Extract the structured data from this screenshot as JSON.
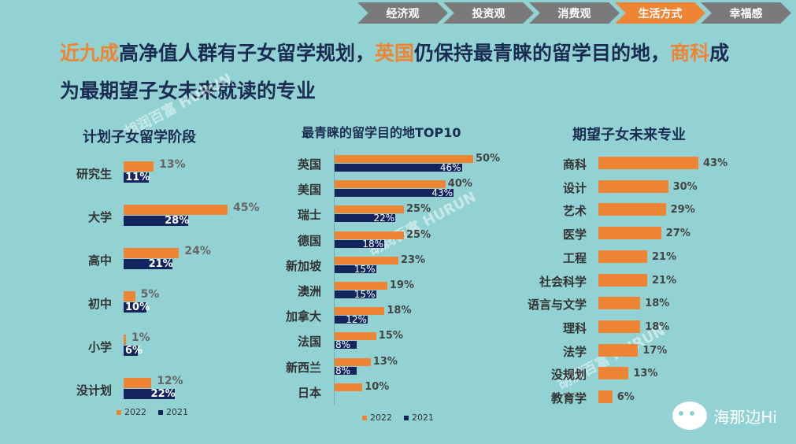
{
  "nav": {
    "tabs": [
      "经济观",
      "投资观",
      "消费观",
      "生活方式",
      "幸福感"
    ],
    "active": "生活方式"
  },
  "headline": {
    "p1": "近九成",
    "p2": "高净值人群有子女留学规划，",
    "p3": "英国",
    "p4": "仍保持最青睐的留学目的地，",
    "p5": "商科",
    "p6": "成为最期望子女未来就读的专业"
  },
  "colors": {
    "orange": "#ef8534",
    "navy": "#14245e",
    "background": "#92d2d2"
  },
  "watermark": {
    "brand_cn": "胡润百富",
    "brand_en": "HURUN",
    "account": "海那边Hi",
    "icon": "wechat-icon"
  },
  "chart_data": [
    {
      "type": "bar",
      "title": "计划子女留学阶段",
      "categories": [
        "研究生",
        "大学",
        "高中",
        "初中",
        "小学",
        "没计划"
      ],
      "series": [
        {
          "name": "2022",
          "values": [
            13,
            45,
            24,
            5,
            1,
            12
          ]
        },
        {
          "name": "2021",
          "values": [
            11,
            28,
            21,
            10,
            6,
            22
          ]
        }
      ],
      "unit": "%",
      "legend": [
        "2022",
        "2021"
      ]
    },
    {
      "type": "bar",
      "title": "最青睐的留学目的地TOP10",
      "categories": [
        "英国",
        "美国",
        "瑞士",
        "德国",
        "新加坡",
        "澳洲",
        "加拿大",
        "法国",
        "新西兰",
        "日本"
      ],
      "series": [
        {
          "name": "2022",
          "values": [
            50,
            40,
            25,
            25,
            23,
            19,
            18,
            15,
            13,
            10
          ]
        },
        {
          "name": "2021",
          "values": [
            46,
            43,
            22,
            18,
            15,
            15,
            12,
            8,
            8,
            null
          ]
        }
      ],
      "unit": "%",
      "legend": [
        "2022",
        "2021"
      ]
    },
    {
      "type": "bar",
      "title": "期望子女未来专业",
      "categories": [
        "商科",
        "设计",
        "艺术",
        "医学",
        "工程",
        "社会科学",
        "语言与文学",
        "理科",
        "法学",
        "没规划",
        "教育学"
      ],
      "series": [
        {
          "name": "2022",
          "values": [
            43,
            30,
            29,
            27,
            21,
            21,
            18,
            18,
            17,
            13,
            6
          ]
        }
      ],
      "unit": "%"
    }
  ]
}
